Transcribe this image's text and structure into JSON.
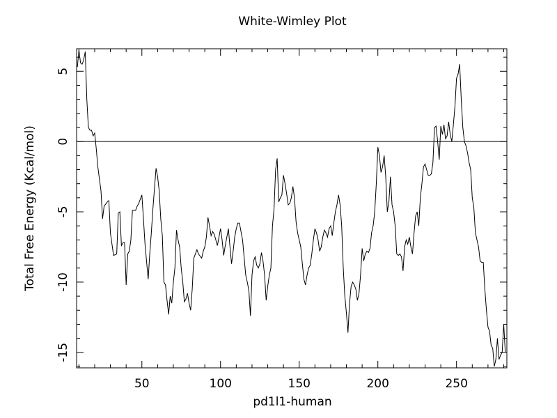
{
  "chart_data": {
    "type": "line",
    "title": "White-Wimley Plot",
    "xlabel": "pd1l1-human",
    "ylabel": "Total Free Energy (Kcal/mol)",
    "color": "#000000",
    "x": [
      9,
      10,
      11,
      12,
      13,
      14,
      15,
      16,
      17,
      18,
      19,
      20,
      21,
      22,
      24,
      25,
      26,
      28,
      29,
      30,
      32,
      34,
      35,
      36,
      37,
      38,
      39,
      40,
      41,
      42,
      43,
      44,
      46,
      47,
      48,
      50,
      51,
      52,
      54,
      55,
      56,
      57,
      59,
      60,
      61,
      62,
      63,
      64,
      65,
      66,
      67,
      68,
      69,
      70,
      71,
      72,
      73,
      74,
      75,
      76,
      77,
      78,
      79,
      80,
      81,
      82,
      83,
      84,
      85,
      86,
      88,
      89,
      90,
      91,
      92,
      93,
      94,
      95,
      96,
      97,
      98,
      99,
      100,
      101,
      102,
      103,
      104,
      105,
      106,
      107,
      108,
      109,
      110,
      111,
      112,
      113,
      114,
      116,
      117,
      118,
      119,
      120,
      121,
      122,
      123,
      124,
      125,
      126,
      127,
      128,
      129,
      130,
      131,
      132,
      133,
      134,
      135,
      136,
      137,
      138,
      139,
      140,
      141,
      142,
      143,
      144,
      145,
      146,
      147,
      148,
      149,
      150,
      151,
      152,
      153,
      154,
      155,
      156,
      157,
      158,
      159,
      160,
      161,
      162,
      163,
      164,
      165,
      166,
      167,
      168,
      169,
      170,
      171,
      172,
      173,
      174,
      175,
      176,
      177,
      178,
      179,
      180,
      181,
      182,
      183,
      184,
      185,
      186,
      187,
      188,
      189,
      190,
      191,
      192,
      193,
      194,
      195,
      196,
      197,
      198,
      199,
      200,
      201,
      202,
      203,
      204,
      205,
      206,
      207,
      208,
      209,
      210,
      211,
      212,
      213,
      214,
      215,
      216,
      217,
      218,
      219,
      220,
      221,
      222,
      223,
      224,
      225,
      226,
      227,
      228,
      229,
      230,
      231,
      232,
      233,
      234,
      235,
      236,
      237,
      238,
      239,
      240,
      241,
      242,
      243,
      244,
      245,
      246,
      247,
      248,
      249,
      250,
      251,
      252,
      253,
      254,
      255,
      256,
      257,
      258,
      259,
      260,
      261,
      262,
      263,
      264,
      265,
      266,
      267,
      268,
      269,
      270,
      271,
      272,
      273,
      274,
      275,
      276,
      277,
      278,
      279,
      280,
      281
    ],
    "values": [
      5.3,
      6.5,
      5.6,
      5.5,
      5.8,
      6.4,
      3.0,
      1.0,
      0.8,
      0.8,
      0.4,
      0.6,
      -0.5,
      -1.8,
      -3.5,
      -5.5,
      -4.6,
      -4.3,
      -4.2,
      -6.5,
      -8.1,
      -8.0,
      -5.1,
      -5.0,
      -7.4,
      -7.2,
      -7.2,
      -10.2,
      -8.0,
      -7.8,
      -7.0,
      -4.9,
      -4.9,
      -4.6,
      -4.4,
      -3.8,
      -5.5,
      -7.3,
      -9.8,
      -8.0,
      -6.5,
      -4.8,
      -1.9,
      -2.5,
      -3.5,
      -5.5,
      -6.7,
      -10.0,
      -10.2,
      -11.3,
      -12.3,
      -11.0,
      -11.5,
      -10.0,
      -9.0,
      -6.3,
      -7.0,
      -7.5,
      -9.0,
      -10.0,
      -11.4,
      -11.2,
      -10.8,
      -11.5,
      -12.0,
      -10.5,
      -8.3,
      -8.0,
      -7.7,
      -8.0,
      -8.3,
      -7.8,
      -7.5,
      -6.8,
      -5.4,
      -6.0,
      -6.7,
      -6.4,
      -6.6,
      -7.0,
      -7.4,
      -6.8,
      -6.2,
      -7.0,
      -8.1,
      -7.4,
      -6.8,
      -6.2,
      -7.5,
      -8.7,
      -7.8,
      -6.8,
      -6.2,
      -5.8,
      -5.8,
      -6.4,
      -7.0,
      -9.5,
      -10.0,
      -10.6,
      -12.4,
      -9.5,
      -8.5,
      -8.2,
      -8.8,
      -9.0,
      -8.7,
      -7.9,
      -8.5,
      -9.5,
      -11.3,
      -10.3,
      -9.5,
      -9.0,
      -6.0,
      -4.8,
      -2.0,
      -1.2,
      -4.3,
      -4.0,
      -3.8,
      -2.4,
      -3.0,
      -3.7,
      -4.5,
      -4.4,
      -4.0,
      -3.2,
      -4.0,
      -5.7,
      -6.5,
      -7.0,
      -7.5,
      -8.7,
      -9.8,
      -10.2,
      -9.5,
      -9.0,
      -8.8,
      -8.0,
      -7.0,
      -6.2,
      -6.5,
      -7.0,
      -7.8,
      -7.5,
      -6.8,
      -6.3,
      -6.5,
      -6.8,
      -6.2,
      -6.0,
      -6.7,
      -5.8,
      -5.0,
      -4.5,
      -3.8,
      -4.5,
      -6.0,
      -9.0,
      -11.0,
      -12.2,
      -13.6,
      -11.5,
      -10.3,
      -10.0,
      -10.2,
      -10.5,
      -11.3,
      -10.8,
      -9.5,
      -7.6,
      -8.5,
      -8.0,
      -7.8,
      -7.9,
      -7.6,
      -6.5,
      -6.0,
      -5.0,
      -3.0,
      -0.4,
      -1.0,
      -2.2,
      -1.8,
      -1.0,
      -2.5,
      -5.0,
      -4.3,
      -2.5,
      -4.5,
      -5.0,
      -6.0,
      -8.0,
      -8.1,
      -8.0,
      -8.2,
      -9.2,
      -7.5,
      -7.0,
      -7.3,
      -6.8,
      -7.5,
      -8.0,
      -6.5,
      -5.3,
      -5.0,
      -6.0,
      -4.0,
      -3.0,
      -1.8,
      -1.6,
      -2.0,
      -2.4,
      -2.4,
      -2.3,
      -1.5,
      1.0,
      1.1,
      0.0,
      -1.3,
      1.1,
      0.5,
      1.2,
      0.2,
      0.4,
      1.4,
      0.5,
      0.0,
      1.2,
      2.5,
      4.5,
      4.8,
      5.5,
      3.0,
      1.0,
      0.0,
      -0.3,
      -0.8,
      -1.5,
      -2.0,
      -4.0,
      -4.7,
      -6.5,
      -7.0,
      -7.5,
      -8.5,
      -8.6,
      -8.6,
      -10.5,
      -12.0,
      -13.2,
      -13.5,
      -14.5,
      -14.7,
      -16.0,
      -15.5,
      -14.0,
      -15.5,
      -15.2,
      -15.0,
      -13.0,
      -15.0
    ],
    "xlim": [
      8.5,
      282
    ],
    "ylim": [
      -16.1,
      6.6
    ],
    "xticks": [
      50,
      100,
      150,
      200,
      250
    ],
    "yticks": [
      -15,
      -10,
      -5,
      0,
      5
    ],
    "xminorticks": [
      10,
      20,
      30,
      40,
      60,
      70,
      80,
      90,
      110,
      120,
      130,
      140,
      160,
      170,
      180,
      190,
      210,
      220,
      230,
      240,
      260,
      270,
      280
    ],
    "yminorticks": [
      -16,
      -14,
      -13,
      -12,
      -11,
      -9,
      -8,
      -7,
      -6,
      -4,
      -3,
      -2,
      -1,
      1,
      2,
      3,
      4,
      6
    ],
    "reference_line": 0
  }
}
